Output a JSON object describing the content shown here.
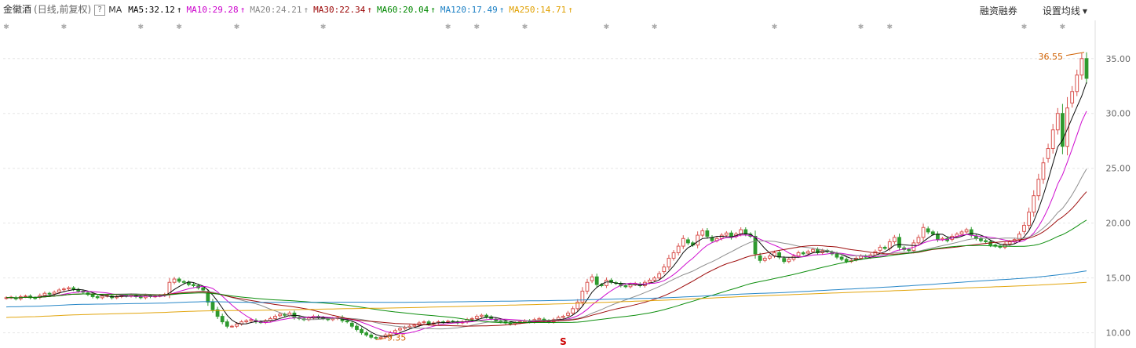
{
  "stock": {
    "name": "金徽酒",
    "mode": "(日线,前复权)",
    "help": "?",
    "ma_label": "MA"
  },
  "moving_averages": [
    {
      "label": "MA5:32.12",
      "color": "#000000"
    },
    {
      "label": "MA10:29.28",
      "color": "#cc00cc"
    },
    {
      "label": "MA20:24.21",
      "color": "#888888"
    },
    {
      "label": "MA30:22.34",
      "color": "#990000"
    },
    {
      "label": "MA60:20.04",
      "color": "#008800"
    },
    {
      "label": "MA120:17.49",
      "color": "#1a7fc4"
    },
    {
      "label": "MA250:14.71",
      "color": "#e0a000"
    }
  ],
  "toolbar": {
    "margin_trading": "融资融券",
    "ma_settings": "设置均线"
  },
  "chart_data": {
    "type": "candlestick",
    "y_ticks": [
      "10.00",
      "15.00",
      "20.00",
      "25.00",
      "30.00",
      "35.00"
    ],
    "ylim": [
      8.9,
      38.2
    ],
    "grid": true,
    "annotations": {
      "high_label": "36.55",
      "low_label": "9.35",
      "event_marker": "S"
    },
    "colors": {
      "up": "#d9534f",
      "down": "#2e9a2e",
      "grid": "#e6e6e6"
    },
    "closes": [
      13.2,
      13.25,
      13.1,
      13.3,
      13.35,
      13.2,
      13.15,
      13.4,
      13.6,
      13.55,
      13.7,
      13.9,
      14.0,
      14.1,
      13.95,
      13.8,
      13.7,
      13.5,
      13.3,
      13.2,
      13.35,
      13.4,
      13.2,
      13.3,
      13.4,
      13.35,
      13.45,
      13.3,
      13.2,
      13.4,
      13.3,
      13.35,
      13.4,
      13.5,
      14.6,
      14.9,
      14.7,
      14.6,
      14.4,
      14.3,
      14.1,
      13.9,
      12.8,
      12.1,
      11.5,
      11.0,
      10.6,
      10.6,
      10.8,
      11.0,
      11.1,
      11.2,
      11.0,
      10.95,
      11.1,
      11.3,
      11.5,
      11.7,
      11.6,
      11.8,
      11.4,
      11.3,
      11.2,
      11.35,
      11.5,
      11.4,
      11.3,
      11.2,
      11.3,
      11.4,
      11.1,
      11.0,
      10.6,
      10.3,
      10.0,
      9.8,
      9.6,
      9.5,
      9.6,
      9.8,
      10.0,
      10.2,
      10.4,
      10.5,
      10.6,
      10.7,
      10.9,
      11.0,
      10.8,
      10.9,
      11.0,
      10.95,
      11.05,
      11.0,
      10.9,
      11.0,
      11.2,
      11.3,
      11.5,
      11.6,
      11.45,
      11.3,
      11.1,
      11.0,
      10.9,
      10.8,
      10.9,
      11.0,
      11.1,
      11.0,
      11.2,
      11.3,
      11.1,
      11.0,
      11.2,
      11.4,
      11.5,
      11.8,
      12.2,
      12.8,
      13.8,
      14.6,
      15.1,
      14.4,
      14.3,
      14.8,
      14.6,
      14.5,
      14.3,
      14.2,
      14.4,
      14.5,
      14.3,
      14.6,
      14.8,
      15.0,
      15.4,
      16.0,
      16.8,
      17.3,
      17.9,
      18.6,
      18.2,
      18.0,
      18.9,
      19.3,
      18.8,
      18.4,
      18.6,
      18.9,
      19.1,
      18.7,
      19.0,
      19.4,
      19.0,
      18.8,
      17.2,
      16.6,
      16.8,
      17.0,
      17.3,
      16.9,
      16.5,
      16.7,
      17.0,
      17.3,
      17.2,
      17.4,
      17.6,
      17.3,
      17.5,
      17.4,
      17.2,
      16.9,
      16.7,
      16.5,
      16.6,
      16.8,
      17.0,
      16.9,
      17.1,
      17.4,
      17.8,
      17.7,
      18.3,
      18.7,
      17.8,
      17.6,
      17.5,
      18.2,
      18.7,
      19.6,
      19.2,
      19.0,
      18.5,
      18.6,
      18.4,
      18.8,
      19.0,
      19.2,
      19.4,
      18.9,
      18.6,
      18.4,
      18.3,
      18.0,
      17.9,
      17.8,
      18.1,
      18.3,
      18.5,
      19.0,
      19.8,
      21.0,
      22.5,
      24.0,
      25.5,
      26.8,
      28.5,
      30.0,
      27.0,
      30.5,
      32.0,
      33.5,
      35.0,
      33.2
    ]
  }
}
